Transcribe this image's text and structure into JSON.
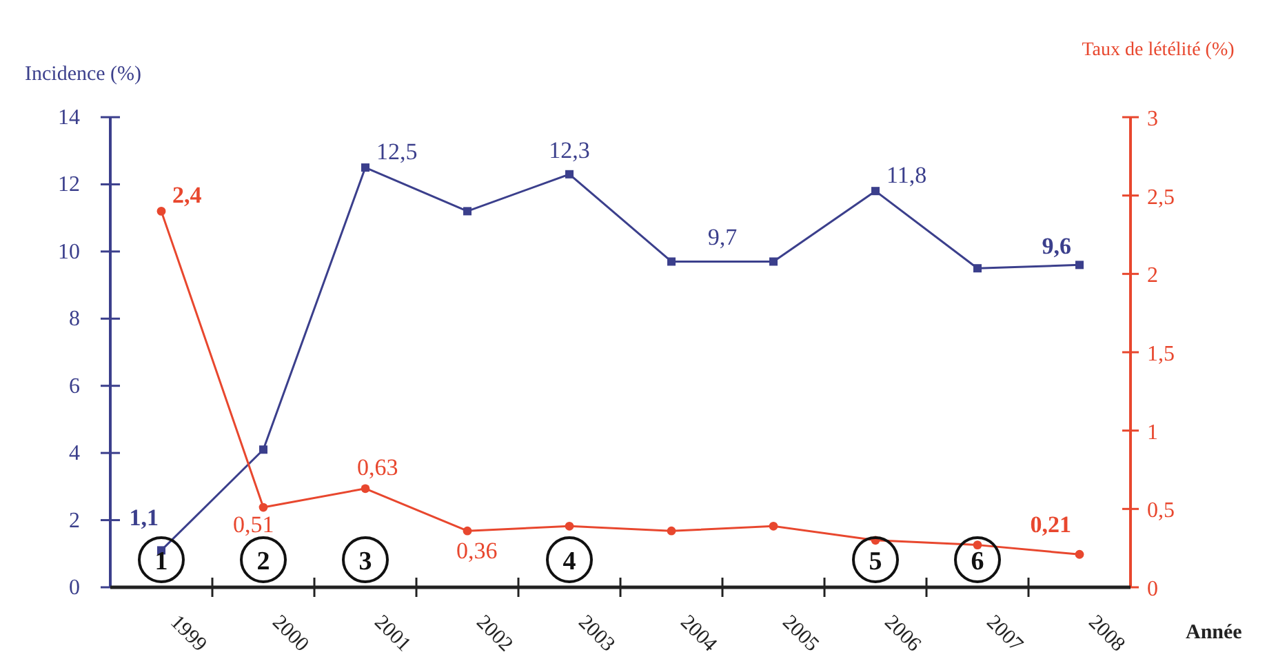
{
  "chart_data": {
    "type": "line",
    "xlabel": "Année",
    "ylabel": "Incidence (%)",
    "y2label": "Taux de létélité (%)",
    "categories": [
      "1999",
      "2000",
      "2001",
      "2002",
      "2003",
      "2004",
      "2005",
      "2006",
      "2007",
      "2008"
    ],
    "series": [
      {
        "name": null,
        "color": "#3b3f8c",
        "marker": "square",
        "values": [
          1.1,
          4.1,
          12.5,
          11.2,
          12.3,
          9.7,
          9.7,
          11.8,
          9.5,
          9.6
        ],
        "value_labels": [
          "1,1",
          null,
          "12,5",
          null,
          "12,3",
          "9,7",
          null,
          "11,8",
          null,
          "9,6"
        ]
      },
      {
        "name": null,
        "color": "#e8472e",
        "marker": "circle",
        "axis": "y2",
        "values": [
          2.4,
          0.51,
          0.63,
          0.36,
          0.39,
          0.36,
          0.39,
          0.3,
          0.27,
          0.21
        ],
        "value_labels": [
          "2,4",
          "0,51",
          "0,63",
          "0,36",
          null,
          null,
          null,
          null,
          null,
          "0,21"
        ]
      }
    ],
    "ylim": [
      0,
      14
    ],
    "yticks": [
      0,
      2,
      4,
      6,
      8,
      10,
      12,
      14
    ],
    "y2lim": [
      0,
      3
    ],
    "y2ticks": [
      0,
      {
        "value": 0.5,
        "label": "0,5"
      },
      1,
      {
        "value": 1.5,
        "label": "1,5"
      },
      2,
      {
        "value": 2.5,
        "label": "2,5"
      },
      3
    ],
    "annotations": [
      "1",
      "2",
      "3",
      "4",
      "5",
      "6"
    ],
    "grid": false
  }
}
